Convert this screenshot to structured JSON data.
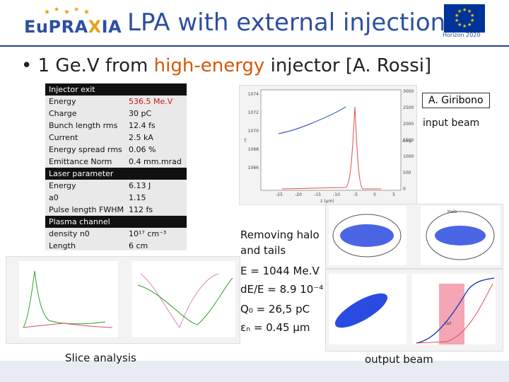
{
  "header": {
    "logo_text_a": "EuPRA",
    "logo_text_x": "X",
    "logo_text_b": "IA",
    "title": "LPA with external injection",
    "eu_caption": "Horizon 2020"
  },
  "bullet": {
    "part1": "1 Ge.V from ",
    "highlight": "high-energy",
    "part2": " injector [A. Rossi]"
  },
  "params": [
    {
      "type": "header",
      "label": "Injector exit"
    },
    {
      "label": "Energy",
      "value": "536.5 Me.V",
      "red": true
    },
    {
      "label": "Charge",
      "value": "30 pC",
      "red": false
    },
    {
      "label": "Bunch length rms",
      "value": "12.4 fs",
      "red": false
    },
    {
      "label": "Current",
      "value": "2.5 kA",
      "red": false
    },
    {
      "label": "Energy spread rms",
      "value": "0.06 %",
      "red": false
    },
    {
      "label": "Emittance Norm",
      "value": "0.4 mm.mrad",
      "red": false
    },
    {
      "type": "header",
      "label": "Laser parameter"
    },
    {
      "label": "Energy",
      "value": "6.13 J",
      "red": false
    },
    {
      "label": "a0",
      "value": "1.15",
      "red": false
    },
    {
      "label": "Pulse length FWHM",
      "value": "112 fs",
      "red": false
    },
    {
      "type": "header",
      "label": "Plasma channel"
    },
    {
      "label": "density n0",
      "value": "10¹⁷ cm⁻³",
      "red": false
    },
    {
      "label": "Length",
      "value": "6 cm",
      "red": false
    }
  ],
  "annotations": {
    "author": "A. Giribono",
    "input_beam": "input beam",
    "halo_line1": "Removing halo",
    "halo_line2": "and tails",
    "energy": "E = 1044 Me.V",
    "espread": "dE/E = 8.9 10⁻⁴",
    "charge": "Q₀  = 26,5 pC",
    "emittance": "εₙ = 0.45 μm",
    "slice": "Slice analysis",
    "output_beam": "output beam",
    "halo_label": "Halo",
    "tail_label": "tail",
    "z_axis": "z (μm)"
  },
  "input_plot": {
    "y_left_ticks": [
      "1074",
      "1072",
      "1070",
      "1068",
      "1066"
    ],
    "y_right_ticks": [
      "3000",
      "2500",
      "2000",
      "1500",
      "1000",
      "500",
      "0"
    ],
    "x_ticks": [
      "-25",
      "-20",
      "-15",
      "-10",
      "-5",
      "0",
      "5"
    ],
    "y_left_label": "T",
    "y_right_label": "Amp"
  },
  "colors": {
    "accent_blue": "#2d4fa0",
    "highlight_orange": "#d4580a",
    "red_value": "#c01a1a",
    "tail_pink": "#f4a6b4"
  }
}
